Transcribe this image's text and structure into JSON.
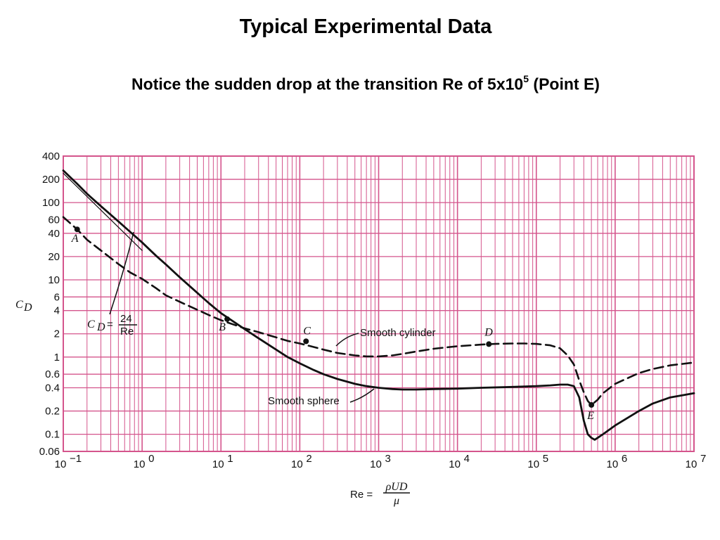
{
  "slide": {
    "title": "Typical Experimental Data",
    "subtitle_main": "Notice the sudden drop at the transition Re of 5x10",
    "subtitle_sup": "5",
    "subtitle_tail": " (Point E)"
  },
  "chart_data": {
    "type": "line",
    "title": "",
    "x_scale": "log",
    "y_scale": "log",
    "xlim": [
      0.1,
      10000000
    ],
    "ylim": [
      0.06,
      400
    ],
    "grid": true,
    "grid_color": "#d4548c",
    "x_tick_values": [
      0.1,
      1,
      10,
      100,
      1000,
      10000,
      100000,
      1000000,
      10000000
    ],
    "x_tick_labels": [
      {
        "base": "10",
        "exp": "−1"
      },
      {
        "base": "10",
        "exp": "0"
      },
      {
        "base": "10",
        "exp": "1"
      },
      {
        "base": "10",
        "exp": "2"
      },
      {
        "base": "10",
        "exp": "3"
      },
      {
        "base": "10",
        "exp": "4"
      },
      {
        "base": "10",
        "exp": "5"
      },
      {
        "base": "10",
        "exp": "6"
      },
      {
        "base": "10",
        "exp": "7"
      }
    ],
    "y_tick_values": [
      400,
      200,
      100,
      60,
      40,
      20,
      10,
      6,
      4,
      2,
      1,
      0.6,
      0.4,
      0.2,
      0.1,
      0.06
    ],
    "y_tick_labels": [
      "400",
      "200",
      "100",
      "60",
      "40",
      "20",
      "10",
      "6",
      "4",
      "2",
      "1",
      "0.6",
      "0.4",
      "0.2",
      "0.1",
      "0.06"
    ],
    "ylabel": {
      "base": "C",
      "sub": "D"
    },
    "xlabel": {
      "prefix": "Re =",
      "numerator": "ρUD",
      "denominator": "μ"
    },
    "series": [
      {
        "label": "Smooth cylinder",
        "style": "dashed",
        "x": [
          0.1,
          0.15,
          0.2,
          0.3,
          0.5,
          0.7,
          1,
          1.5,
          2,
          3,
          5,
          7,
          10,
          15,
          20,
          30,
          50,
          70,
          100,
          150,
          200,
          300,
          500,
          700,
          1000,
          1500,
          2000,
          3000,
          5000,
          7000,
          10000,
          20000,
          30000,
          50000,
          70000,
          100000,
          150000,
          200000,
          250000,
          300000,
          350000,
          400000,
          450000,
          500000,
          600000,
          700000,
          1000000,
          2000000,
          3000000,
          5000000,
          10000000
        ],
        "y": [
          65,
          45,
          33,
          24,
          16,
          12.5,
          10.3,
          7.8,
          6.3,
          5.2,
          4.1,
          3.5,
          3.0,
          2.6,
          2.35,
          2.1,
          1.8,
          1.62,
          1.5,
          1.35,
          1.25,
          1.13,
          1.05,
          1.02,
          1.02,
          1.05,
          1.1,
          1.18,
          1.28,
          1.33,
          1.38,
          1.45,
          1.48,
          1.5,
          1.5,
          1.48,
          1.42,
          1.3,
          1.05,
          0.8,
          0.5,
          0.35,
          0.27,
          0.24,
          0.28,
          0.34,
          0.45,
          0.62,
          0.7,
          0.78,
          0.85
        ]
      },
      {
        "label": "Smooth sphere",
        "style": "solid",
        "x": [
          0.1,
          0.15,
          0.2,
          0.3,
          0.5,
          0.7,
          1,
          1.5,
          2,
          3,
          5,
          7,
          10,
          15,
          20,
          30,
          50,
          70,
          100,
          150,
          200,
          300,
          500,
          700,
          1000,
          1500,
          2000,
          3000,
          5000,
          10000,
          20000,
          50000,
          100000,
          150000,
          200000,
          250000,
          300000,
          350000,
          400000,
          450000,
          500000,
          550000,
          600000,
          700000,
          1000000,
          2000000,
          3000000,
          5000000,
          10000000
        ],
        "y": [
          260,
          175,
          130,
          90,
          57,
          42,
          30.5,
          20.5,
          15.8,
          10.8,
          6.8,
          5.0,
          3.7,
          2.8,
          2.3,
          1.75,
          1.25,
          1.0,
          0.83,
          0.68,
          0.6,
          0.52,
          0.45,
          0.42,
          0.4,
          0.385,
          0.38,
          0.38,
          0.385,
          0.39,
          0.4,
          0.41,
          0.42,
          0.43,
          0.44,
          0.44,
          0.42,
          0.3,
          0.15,
          0.1,
          0.09,
          0.085,
          0.09,
          0.1,
          0.13,
          0.2,
          0.25,
          0.3,
          0.34
        ]
      },
      {
        "label": "C_D = 24/Re",
        "style": "thin",
        "x": [
          0.1,
          1
        ],
        "y": [
          240,
          24
        ]
      }
    ],
    "points": [
      {
        "label": "A",
        "x": 0.15,
        "y": 45
      },
      {
        "label": "B",
        "x": 12,
        "y": 3.1
      },
      {
        "label": "C",
        "x": 120,
        "y": 1.6
      },
      {
        "label": "D",
        "x": 25000,
        "y": 1.47
      },
      {
        "label": "E",
        "x": 500000,
        "y": 0.24
      }
    ],
    "annotations": {
      "cylinder_label": "Smooth cylinder",
      "sphere_label": "Smooth sphere",
      "stokes_label": {
        "lhs_base": "C",
        "lhs_sub": "D",
        "eq": "=",
        "numerator": "24",
        "denominator": "Re"
      }
    }
  }
}
